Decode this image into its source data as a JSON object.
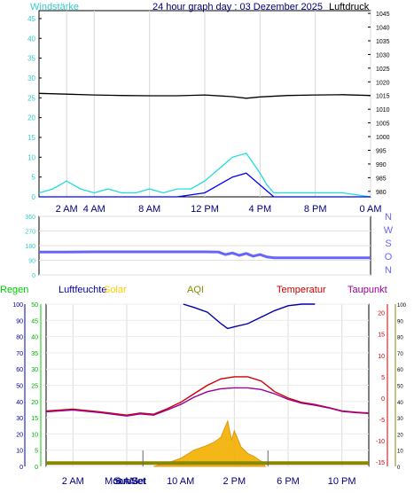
{
  "panels": {
    "wind": {
      "title": "24 hour graph day : 03 Dezember 2025",
      "left_label": "Windstärke",
      "right_label": "Luftdruck",
      "colors": {
        "left": "#33cccc",
        "right": "#000000",
        "wind": "#22dddd",
        "gust": "#0000ff",
        "pressure": "#000000"
      },
      "chart_data": {
        "type": "line",
        "x_ticks": [
          "2 AM",
          "4 AM",
          "8 AM",
          "12 PM",
          "4 PM",
          "8 PM",
          "0 AM"
        ],
        "x_tick_hours": [
          2,
          4,
          8,
          12,
          16,
          20,
          24
        ],
        "left_axis": {
          "label": "Windstärke",
          "ticks": [
            0,
            5,
            10,
            15,
            20,
            25,
            30,
            35,
            40,
            45
          ],
          "range": [
            0,
            47
          ]
        },
        "right_axis": {
          "label": "Luftdruck",
          "ticks": [
            980,
            985,
            990,
            995,
            1000,
            1005,
            1010,
            1015,
            1020,
            1025,
            1030,
            1035,
            1040,
            1045
          ],
          "range": [
            978,
            1046
          ]
        },
        "series": [
          {
            "axis": "right",
            "color": "#000000",
            "x": [
              0,
              2,
              4,
              6,
              8,
              10,
              12,
              14,
              15,
              16,
              18,
              20,
              22,
              24
            ],
            "y": [
              1015.8,
              1015.5,
              1015.2,
              1015.0,
              1014.9,
              1014.9,
              1015.2,
              1014.6,
              1014.0,
              1014.5,
              1015.0,
              1015.2,
              1015.3,
              1015.0
            ]
          },
          {
            "axis": "left",
            "color": "#22dddd",
            "x": [
              0,
              1,
              2,
              3,
              4,
              5,
              6,
              7,
              8,
              9,
              10,
              11,
              12,
              13,
              14,
              15,
              16,
              16.5,
              17,
              18,
              20,
              22,
              24
            ],
            "y": [
              1,
              2,
              4,
              2,
              1,
              2,
              1,
              1,
              2,
              1,
              2,
              2,
              4,
              7,
              10,
              11,
              6,
              3,
              1,
              1,
              1,
              1,
              0
            ]
          },
          {
            "axis": "left",
            "color": "#0000ff",
            "x": [
              0,
              2,
              4,
              6,
              8,
              10,
              12,
              13,
              14,
              15,
              16,
              17,
              18,
              20,
              24
            ],
            "y": [
              0,
              0,
              0,
              0,
              0,
              0,
              1,
              3,
              5,
              6,
              3,
              0,
              0,
              0,
              0
            ]
          }
        ]
      }
    },
    "direction": {
      "compass_labels": [
        "N",
        "W",
        "S",
        "O",
        "N"
      ],
      "color": "#6666ff",
      "chart_data": {
        "type": "line",
        "y_axis": {
          "ticks": [
            0,
            90,
            180,
            270,
            360
          ],
          "range": [
            0,
            360
          ]
        },
        "series": [
          {
            "color": "#6666ff",
            "x": [
              0,
              2,
              4,
              6,
              8,
              10,
              12,
              13,
              13.5,
              14,
              14.5,
              15,
              15.5,
              16,
              16.5,
              17,
              18,
              20,
              22,
              24
            ],
            "y": [
              140,
              140,
              142,
              142,
              142,
              142,
              142,
              140,
              125,
              135,
              120,
              132,
              115,
              125,
              110,
              105,
              105,
              105,
              105,
              105
            ]
          }
        ]
      }
    },
    "weather": {
      "legend": [
        {
          "label": "Regen",
          "color": "#00cc00"
        },
        {
          "label": "Luftfeuchte",
          "color": "#0000aa"
        },
        {
          "label": "Solar",
          "color": "#ffcc00"
        },
        {
          "label": "AQI",
          "color": "#888800"
        },
        {
          "label": "Temperatur",
          "color": "#cc0000"
        },
        {
          "label": "Taupunkt",
          "color": "#990099"
        }
      ],
      "moon_label": "Moon Set",
      "sun_label": "SunSet",
      "chart_data": {
        "type": "line",
        "x_ticks": [
          "2 AM",
          "6 AM",
          "10 AM",
          "2 PM",
          "6 PM",
          "10 PM"
        ],
        "x_tick_hours": [
          2,
          6,
          10,
          14,
          18,
          22
        ],
        "left_axis_humidity": {
          "ticks": [
            0,
            10,
            20,
            30,
            40,
            50,
            60,
            70,
            80,
            90,
            100
          ],
          "range": [
            0,
            100
          ]
        },
        "left_axis_rain": {
          "ticks": [
            0,
            5,
            10,
            15,
            20,
            25,
            30,
            35,
            40,
            45,
            50
          ],
          "range": [
            0,
            50
          ]
        },
        "right_axis_temp": {
          "ticks": [
            20,
            15,
            10,
            5,
            0,
            -5,
            -10,
            -15
          ],
          "range": [
            -16,
            22
          ]
        },
        "right_axis_solar": {
          "ticks": [
            0,
            10,
            20,
            30,
            40,
            50,
            60,
            70,
            80,
            90,
            100
          ],
          "range": [
            0,
            100
          ]
        },
        "series": [
          {
            "name": "Luftfeuchte",
            "color": "#0000aa",
            "x": [
              10.2,
              11,
              12,
              13,
              13.5,
              14,
              15,
              16,
              17,
              18,
              19,
              20
            ],
            "y": [
              100,
              98,
              95,
              88,
              85,
              86,
              88,
              92,
              96,
              99,
              100,
              100
            ]
          },
          {
            "name": "Temperatur",
            "color": "#cc0000",
            "x": [
              0,
              2,
              4,
              6,
              7,
              8,
              9,
              10,
              11,
              12,
              13,
              14,
              15,
              16,
              17,
              18,
              19,
              20,
              21,
              22,
              23,
              24
            ],
            "y": [
              -3,
              -2.6,
              -3.2,
              -4,
              -3.5,
              -3.8,
              -2.5,
              -1,
              1,
              3,
              4.5,
              5,
              5,
              4,
              1.5,
              0,
              -1,
              -1.5,
              -2.2,
              -3,
              -3.3,
              -3.5
            ]
          },
          {
            "name": "Taupunkt",
            "color": "#990099",
            "x": [
              0,
              2,
              4,
              6,
              7,
              8,
              9,
              10,
              11,
              12,
              13,
              14,
              15,
              16,
              17,
              18,
              19,
              20,
              21,
              22,
              23,
              24
            ],
            "y": [
              -3.2,
              -2.8,
              -3.4,
              -4.2,
              -3.7,
              -4,
              -2.8,
              -1.5,
              0.2,
              1.5,
              2.2,
              2.4,
              2.4,
              2,
              1,
              -0.3,
              -1.2,
              -1.7,
              -2.3,
              -3.1,
              -3.4,
              -3.6
            ]
          },
          {
            "name": "Solar",
            "color": "#ffcc00",
            "x": [
              8,
              9,
              10,
              11,
              12,
              12.5,
              13,
              13.5,
              13.8,
              14,
              14.5,
              15,
              15.5,
              16,
              16.3
            ],
            "y": [
              0,
              2,
              5,
              10,
              13,
              15,
              18,
              28,
              16,
              22,
              12,
              8,
              6,
              3,
              0
            ]
          },
          {
            "name": "AQI",
            "color": "#888800",
            "x": [
              0,
              24
            ],
            "y": [
              2,
              2
            ]
          }
        ]
      }
    }
  }
}
